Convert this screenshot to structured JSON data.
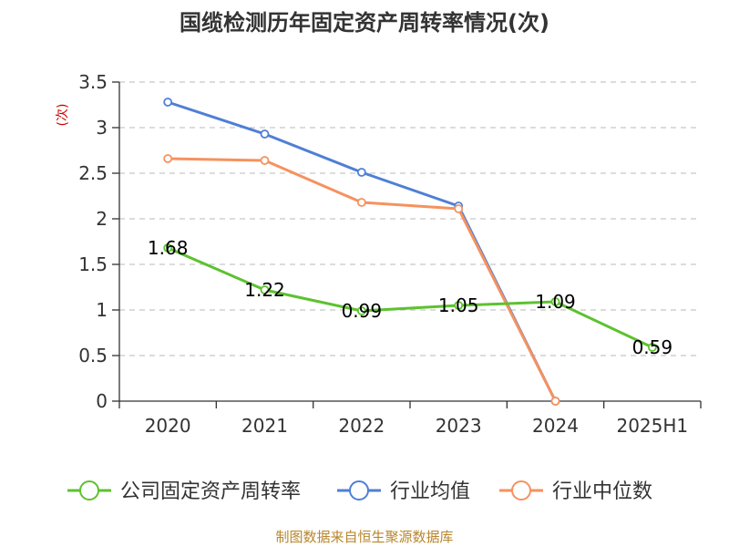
{
  "source_note": "制图数据来自恒生聚源数据库",
  "chart_data": {
    "type": "line",
    "title": "国缆检测历年固定资产周转率情况(次)",
    "ylabel": "(次)",
    "xlabel": "",
    "categories": [
      "2020",
      "2021",
      "2022",
      "2023",
      "2024",
      "2025H1"
    ],
    "ylim": [
      0,
      3.5
    ],
    "yticks": [
      0,
      0.5,
      1,
      1.5,
      2,
      2.5,
      3,
      3.5
    ],
    "ytick_labels": [
      "0",
      "0.5",
      "1",
      "1.5",
      "2",
      "2.5",
      "3",
      "3.5"
    ],
    "grid": true,
    "legend_position": "bottom",
    "series": [
      {
        "name": "公司固定资产周转率",
        "color": "#5cc22f",
        "values": [
          1.68,
          1.22,
          0.99,
          1.05,
          1.09,
          0.59
        ],
        "labels": [
          "1.68",
          "1.22",
          "0.99",
          "1.05",
          "1.09",
          "0.59"
        ]
      },
      {
        "name": "行业均值",
        "color": "#4f7fd6",
        "values": [
          3.28,
          2.93,
          2.51,
          2.14,
          0,
          null
        ]
      },
      {
        "name": "行业中位数",
        "color": "#f5925e",
        "values": [
          2.66,
          2.64,
          2.18,
          2.11,
          0,
          null
        ]
      }
    ]
  }
}
